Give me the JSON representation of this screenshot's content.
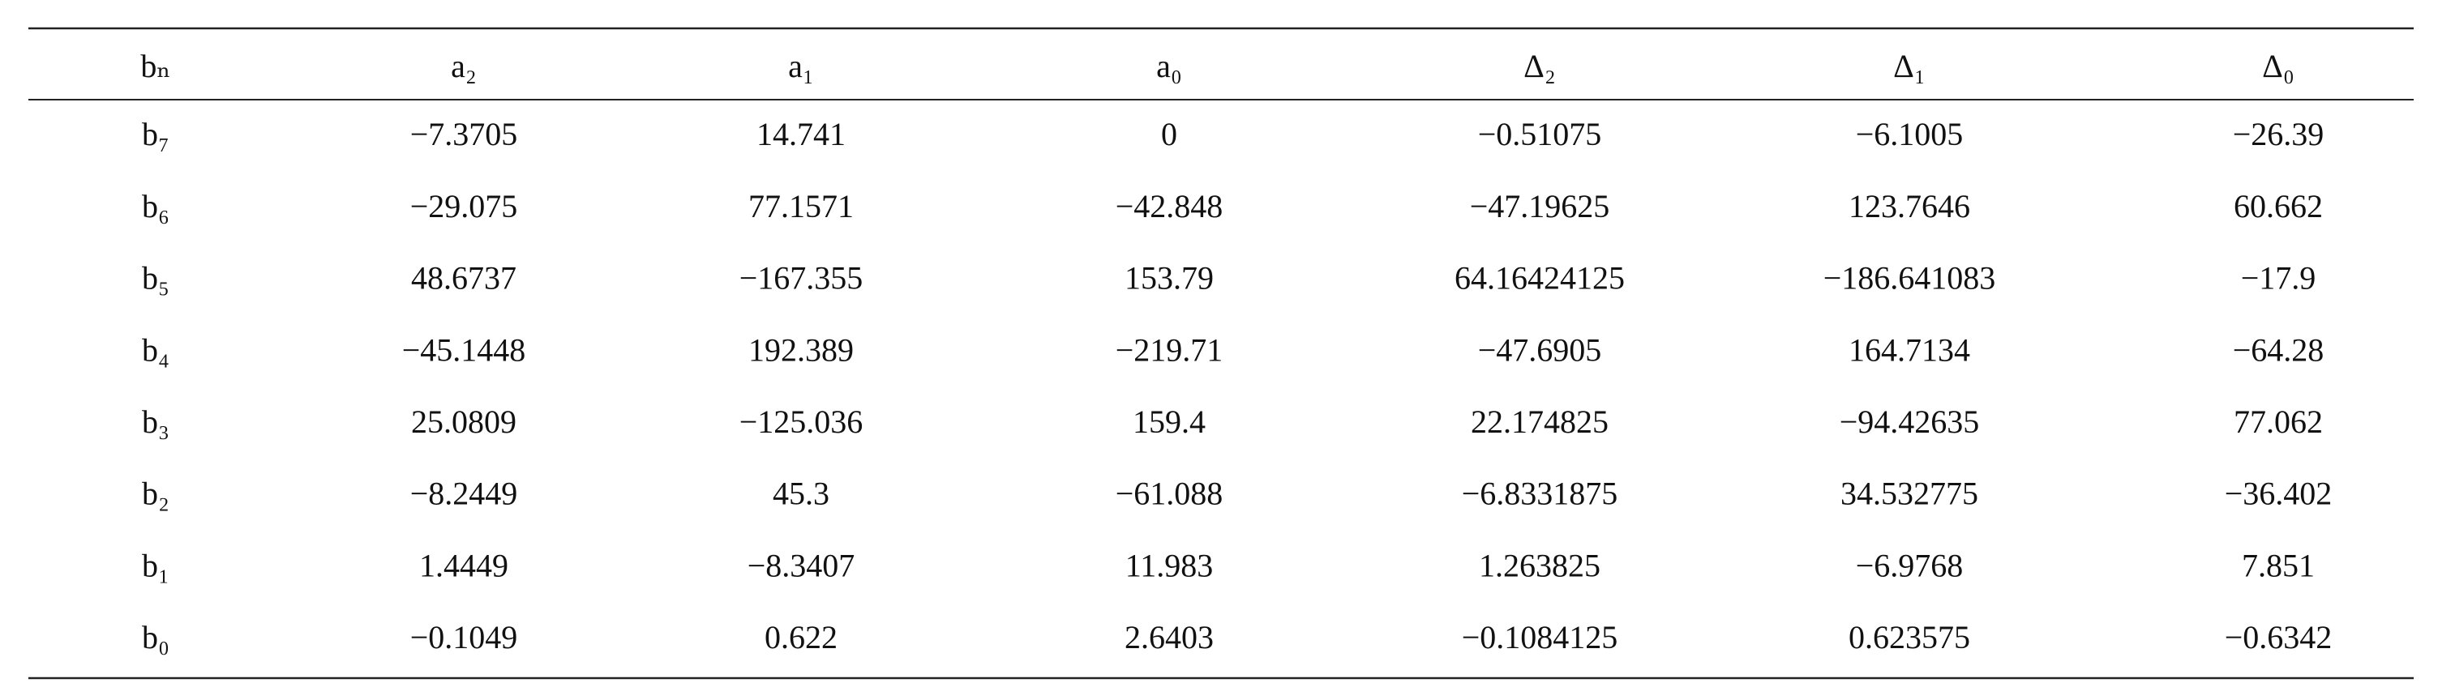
{
  "table": {
    "header": [
      "bₙ",
      "a₂",
      "a₁",
      "a₀",
      "Δ₂",
      "Δ₁",
      "Δ₀"
    ],
    "rows": [
      [
        "b₇",
        "−7.3705",
        "14.741",
        "0",
        "−0.51075",
        "−6.1005",
        "−26.39"
      ],
      [
        "b₆",
        "−29.075",
        "77.1571",
        "−42.848",
        "−47.19625",
        "123.7646",
        "60.662"
      ],
      [
        "b₅",
        "48.6737",
        "−167.355",
        "153.79",
        "64.16424125",
        "−186.641083",
        "−17.9"
      ],
      [
        "b₄",
        "−45.1448",
        "192.389",
        "−219.71",
        "−47.6905",
        "164.7134",
        "−64.28"
      ],
      [
        "b₃",
        "25.0809",
        "−125.036",
        "159.4",
        "22.174825",
        "−94.42635",
        "77.062"
      ],
      [
        "b₂",
        "−8.2449",
        "45.3",
        "−61.088",
        "−6.8331875",
        "34.532775",
        "−36.402"
      ],
      [
        "b₁",
        "1.4449",
        "−8.3407",
        "11.983",
        "1.263825",
        "−6.9768",
        "7.851"
      ],
      [
        "b₀",
        "−0.1049",
        "0.622",
        "2.6403",
        "−0.1084125",
        "0.623575",
        "−0.6342"
      ]
    ]
  }
}
